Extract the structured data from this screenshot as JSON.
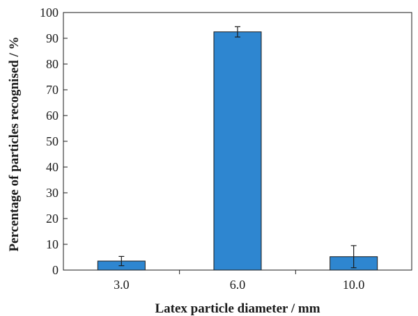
{
  "chart_data": {
    "type": "bar",
    "title": "",
    "xlabel": "Latex particle diameter / mm",
    "ylabel": "Percentage of particles recognised / %",
    "categories": [
      "3.0",
      "6.0",
      "10.0"
    ],
    "values": [
      3.5,
      92.5,
      5.2
    ],
    "error": [
      1.8,
      2.0,
      4.3
    ],
    "ylim": [
      0,
      100
    ],
    "yticks": [
      "0",
      "10",
      "20",
      "30",
      "40",
      "50",
      "60",
      "70",
      "80",
      "90",
      "100"
    ],
    "grid": false,
    "legend": "none",
    "bar_color": "#2e86d0",
    "bar_edge_color": "#1a1a1a"
  }
}
